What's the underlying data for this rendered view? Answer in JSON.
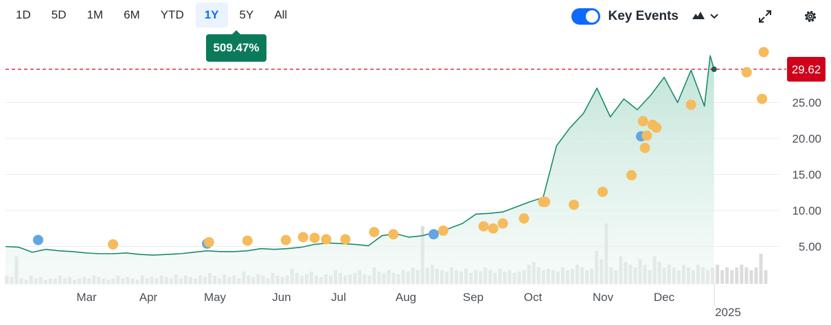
{
  "toolbar": {
    "ranges": [
      "1D",
      "5D",
      "1M",
      "6M",
      "YTD",
      "1Y",
      "5Y",
      "All"
    ],
    "active_range": "1Y",
    "change_badge": "509.47%",
    "key_events_label": "Key Events",
    "key_events_on": true,
    "icons": [
      "mountain-chart-icon",
      "chevron-down-icon",
      "expand-icon",
      "gear-icon"
    ]
  },
  "colors": {
    "line": "#1a8a6a",
    "area": "#d3ece4",
    "reference": "#d0021b",
    "event_orange": "#f5bb5c",
    "event_blue": "#62a6e0",
    "volume": "#dcdcdc",
    "accent": "#0f69ff"
  },
  "chart_data": {
    "type": "area",
    "y_ticks": [
      "5.00",
      "10.00",
      "15.00",
      "20.00",
      "25.00"
    ],
    "ylim": [
      0,
      32
    ],
    "x_ticks": [
      "Mar",
      "Apr",
      "May",
      "Jun",
      "Jul",
      "Aug",
      "Sep",
      "Oct",
      "Nov",
      "Dec"
    ],
    "year_label": "2025",
    "last_price": 29.62,
    "last_price_label": "29.62",
    "grid": true,
    "price": [
      [
        "2024-02-05",
        5.0
      ],
      [
        "2024-02-12",
        4.9
      ],
      [
        "2024-02-19",
        4.2
      ],
      [
        "2024-02-26",
        4.6
      ],
      [
        "2024-03-04",
        4.4
      ],
      [
        "2024-03-11",
        4.3
      ],
      [
        "2024-03-18",
        4.1
      ],
      [
        "2024-03-25",
        4.0
      ],
      [
        "2024-04-01",
        4.0
      ],
      [
        "2024-04-08",
        4.1
      ],
      [
        "2024-04-15",
        3.9
      ],
      [
        "2024-04-22",
        3.8
      ],
      [
        "2024-04-29",
        3.9
      ],
      [
        "2024-05-06",
        4.0
      ],
      [
        "2024-05-13",
        4.2
      ],
      [
        "2024-05-20",
        4.4
      ],
      [
        "2024-05-27",
        4.3
      ],
      [
        "2024-06-03",
        4.3
      ],
      [
        "2024-06-10",
        4.4
      ],
      [
        "2024-06-17",
        4.7
      ],
      [
        "2024-06-24",
        4.6
      ],
      [
        "2024-07-01",
        4.7
      ],
      [
        "2024-07-08",
        4.9
      ],
      [
        "2024-07-15",
        5.3
      ],
      [
        "2024-07-22",
        5.5
      ],
      [
        "2024-07-29",
        5.4
      ],
      [
        "2024-08-05",
        5.3
      ],
      [
        "2024-08-12",
        5.1
      ],
      [
        "2024-08-19",
        6.5
      ],
      [
        "2024-08-26",
        6.8
      ],
      [
        "2024-09-02",
        6.3
      ],
      [
        "2024-09-09",
        6.5
      ],
      [
        "2024-09-16",
        7.0
      ],
      [
        "2024-09-23",
        7.5
      ],
      [
        "2024-09-30",
        8.2
      ],
      [
        "2024-10-07",
        9.5
      ],
      [
        "2024-10-14",
        9.6
      ],
      [
        "2024-10-21",
        9.8
      ],
      [
        "2024-10-28",
        10.5
      ],
      [
        "2024-11-04",
        11.2
      ],
      [
        "2024-11-11",
        11.8
      ],
      [
        "2024-11-18",
        19.0
      ],
      [
        "2024-11-25",
        21.5
      ],
      [
        "2024-12-02",
        23.5
      ],
      [
        "2024-12-09",
        27.0
      ],
      [
        "2024-12-16",
        23.0
      ],
      [
        "2024-12-23",
        25.5
      ],
      [
        "2024-12-30",
        24.0
      ],
      [
        "2025-01-06",
        26.0
      ],
      [
        "2025-01-13",
        28.5
      ],
      [
        "2025-01-20",
        25.0
      ],
      [
        "2025-01-27",
        29.5
      ],
      [
        "2025-02-03",
        24.5
      ],
      [
        "2025-02-06",
        31.5
      ],
      [
        "2025-02-08",
        29.62
      ]
    ],
    "events": [
      {
        "date": "2024-02-22",
        "value": 5.9,
        "type": "blue"
      },
      {
        "date": "2024-04-01",
        "value": 5.3,
        "type": "orange"
      },
      {
        "date": "2024-05-20",
        "value": 5.4,
        "type": "blue"
      },
      {
        "date": "2024-05-21",
        "value": 5.6,
        "type": "orange"
      },
      {
        "date": "2024-06-10",
        "value": 5.8,
        "type": "orange"
      },
      {
        "date": "2024-06-30",
        "value": 5.9,
        "type": "orange"
      },
      {
        "date": "2024-07-09",
        "value": 6.3,
        "type": "orange"
      },
      {
        "date": "2024-07-15",
        "value": 6.2,
        "type": "orange"
      },
      {
        "date": "2024-07-21",
        "value": 6.0,
        "type": "orange"
      },
      {
        "date": "2024-07-31",
        "value": 6.0,
        "type": "orange"
      },
      {
        "date": "2024-08-15",
        "value": 7.0,
        "type": "orange"
      },
      {
        "date": "2024-08-25",
        "value": 6.7,
        "type": "orange"
      },
      {
        "date": "2024-09-15",
        "value": 6.7,
        "type": "blue"
      },
      {
        "date": "2024-09-20",
        "value": 7.2,
        "type": "orange"
      },
      {
        "date": "2024-10-11",
        "value": 7.8,
        "type": "orange"
      },
      {
        "date": "2024-10-16",
        "value": 7.5,
        "type": "orange"
      },
      {
        "date": "2024-10-21",
        "value": 8.2,
        "type": "orange"
      },
      {
        "date": "2024-11-01",
        "value": 8.9,
        "type": "orange"
      },
      {
        "date": "2024-11-11",
        "value": 11.2,
        "type": "orange"
      },
      {
        "date": "2024-11-12",
        "value": 11.2,
        "type": "orange"
      },
      {
        "date": "2024-11-27",
        "value": 10.8,
        "type": "orange"
      },
      {
        "date": "2024-12-12",
        "value": 12.6,
        "type": "orange"
      },
      {
        "date": "2024-12-27",
        "value": 14.9,
        "type": "orange"
      },
      {
        "date": "2025-01-01",
        "value": 20.3,
        "type": "blue"
      },
      {
        "date": "2025-01-02",
        "value": 22.4,
        "type": "orange"
      },
      {
        "date": "2025-01-03",
        "value": 18.7,
        "type": "orange"
      },
      {
        "date": "2025-01-04",
        "value": 20.4,
        "type": "orange"
      },
      {
        "date": "2025-01-07",
        "value": 21.9,
        "type": "orange"
      },
      {
        "date": "2025-01-09",
        "value": 21.5,
        "type": "orange"
      },
      {
        "date": "2025-01-27",
        "value": 24.7,
        "type": "orange"
      },
      {
        "date": "2025-02-25",
        "value": 29.2,
        "type": "orange"
      },
      {
        "date": "2025-03-05",
        "value": 25.5,
        "type": "orange"
      },
      {
        "date": "2025-03-06",
        "value": 32.0,
        "type": "orange"
      }
    ],
    "volume": [
      0.3,
      0.25,
      1.0,
      0.2,
      0.15,
      0.3,
      0.2,
      0.25,
      0.15,
      0.2,
      0.2,
      0.3,
      0.2,
      0.25,
      0.15,
      0.2,
      0.25,
      0.2,
      0.3,
      0.25,
      0.2,
      0.15,
      0.2,
      0.3,
      0.2,
      0.25,
      0.2,
      0.15,
      0.3,
      0.2,
      0.25,
      0.2,
      0.3,
      0.25,
      0.2,
      0.35,
      0.2,
      0.3,
      0.25,
      0.2,
      0.3,
      0.25,
      0.4,
      0.3,
      0.2,
      0.35,
      0.25,
      0.3,
      0.2,
      0.45,
      0.3,
      0.25,
      0.35,
      0.3,
      0.2,
      0.4,
      0.3,
      0.25,
      0.3,
      0.55,
      0.4,
      0.3,
      0.35,
      0.45,
      0.3,
      0.25,
      0.35,
      0.3,
      0.5,
      0.4,
      0.3,
      0.35,
      0.4,
      0.5,
      0.35,
      0.3,
      0.6,
      0.45,
      0.4,
      0.5,
      0.4,
      0.35,
      0.5,
      0.45,
      0.6,
      0.5,
      2.1,
      0.6,
      0.7,
      0.55,
      0.5,
      0.45,
      0.6,
      0.5,
      0.45,
      0.55,
      0.4,
      0.5,
      0.45,
      0.6,
      0.5,
      0.4,
      0.55,
      0.45,
      0.5,
      0.4,
      0.45,
      0.5,
      0.7,
      0.8,
      0.6,
      0.5,
      0.55,
      0.5,
      0.45,
      0.6,
      0.5,
      0.55,
      0.7,
      0.6,
      0.5,
      0.55,
      1.2,
      0.9,
      2.2,
      0.6,
      0.5,
      1.0,
      0.8,
      0.7,
      0.6,
      0.9,
      0.7,
      0.5,
      1.0,
      0.8,
      0.6,
      0.7,
      0.6,
      0.5,
      0.7,
      0.6,
      0.5,
      0.7,
      0.6,
      0.5,
      0.6,
      0.7,
      0.5,
      0.6,
      0.5,
      0.6,
      0.7,
      0.6,
      0.5,
      0.6,
      1.1,
      0.5
    ]
  }
}
